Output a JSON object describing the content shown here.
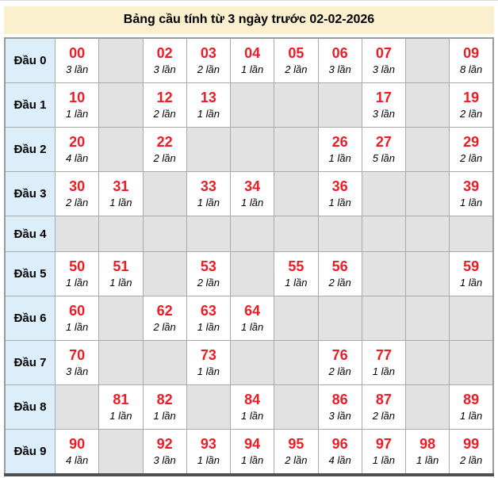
{
  "title": "Bảng cầu tính từ 3 ngày trước 02-02-2026",
  "colors": {
    "title_bg": "#FAF0CD",
    "row_header_bg": "#DCEEF9",
    "empty_cell_bg": "#E2E2E2",
    "number_red": "#ED1C24",
    "grid_line": "#AAAAAA",
    "table_bottom_border": "#4F4F4F"
  },
  "rows": [
    {
      "label": "Đầu 0",
      "cells": [
        {
          "num": "00",
          "count": "3 lần"
        },
        null,
        {
          "num": "02",
          "count": "3 lần"
        },
        {
          "num": "03",
          "count": "2 lần"
        },
        {
          "num": "04",
          "count": "1 lần"
        },
        {
          "num": "05",
          "count": "2 lần"
        },
        {
          "num": "06",
          "count": "3 lần"
        },
        {
          "num": "07",
          "count": "3 lần"
        },
        null,
        {
          "num": "09",
          "count": "8 lần"
        }
      ]
    },
    {
      "label": "Đầu 1",
      "cells": [
        {
          "num": "10",
          "count": "1 lần"
        },
        null,
        {
          "num": "12",
          "count": "2 lần"
        },
        {
          "num": "13",
          "count": "1 lần"
        },
        null,
        null,
        null,
        {
          "num": "17",
          "count": "3 lần"
        },
        null,
        {
          "num": "19",
          "count": "2 lần"
        }
      ]
    },
    {
      "label": "Đầu 2",
      "cells": [
        {
          "num": "20",
          "count": "4 lần"
        },
        null,
        {
          "num": "22",
          "count": "2 lần"
        },
        null,
        null,
        null,
        {
          "num": "26",
          "count": "1 lần"
        },
        {
          "num": "27",
          "count": "5 lần"
        },
        null,
        {
          "num": "29",
          "count": "2 lần"
        }
      ]
    },
    {
      "label": "Đầu 3",
      "cells": [
        {
          "num": "30",
          "count": "2 lần"
        },
        {
          "num": "31",
          "count": "1 lần"
        },
        null,
        {
          "num": "33",
          "count": "1 lần"
        },
        {
          "num": "34",
          "count": "1 lần"
        },
        null,
        {
          "num": "36",
          "count": "1 lần"
        },
        null,
        null,
        {
          "num": "39",
          "count": "1 lần"
        }
      ]
    },
    {
      "label": "Đầu 4",
      "cells": [
        null,
        null,
        null,
        null,
        null,
        null,
        null,
        null,
        null,
        null
      ]
    },
    {
      "label": "Đầu 5",
      "cells": [
        {
          "num": "50",
          "count": "1 lần"
        },
        {
          "num": "51",
          "count": "1 lần"
        },
        null,
        {
          "num": "53",
          "count": "2 lần"
        },
        null,
        {
          "num": "55",
          "count": "1 lần"
        },
        {
          "num": "56",
          "count": "2 lần"
        },
        null,
        null,
        {
          "num": "59",
          "count": "1 lần"
        }
      ]
    },
    {
      "label": "Đầu 6",
      "cells": [
        {
          "num": "60",
          "count": "1 lần"
        },
        null,
        {
          "num": "62",
          "count": "2 lần"
        },
        {
          "num": "63",
          "count": "1 lần"
        },
        {
          "num": "64",
          "count": "1 lần"
        },
        null,
        null,
        null,
        null,
        null
      ]
    },
    {
      "label": "Đầu 7",
      "cells": [
        {
          "num": "70",
          "count": "3 lần"
        },
        null,
        null,
        {
          "num": "73",
          "count": "1 lần"
        },
        null,
        null,
        {
          "num": "76",
          "count": "2 lần"
        },
        {
          "num": "77",
          "count": "1 lần"
        },
        null,
        null
      ]
    },
    {
      "label": "Đầu 8",
      "cells": [
        null,
        {
          "num": "81",
          "count": "1 lần"
        },
        {
          "num": "82",
          "count": "1 lần"
        },
        null,
        {
          "num": "84",
          "count": "1 lần"
        },
        null,
        {
          "num": "86",
          "count": "3 lần"
        },
        {
          "num": "87",
          "count": "2 lần"
        },
        null,
        {
          "num": "89",
          "count": "1 lần"
        }
      ]
    },
    {
      "label": "Đầu 9",
      "cells": [
        {
          "num": "90",
          "count": "4 lần"
        },
        null,
        {
          "num": "92",
          "count": "3 lần"
        },
        {
          "num": "93",
          "count": "1 lần"
        },
        {
          "num": "94",
          "count": "1 lần"
        },
        {
          "num": "95",
          "count": "2 lần"
        },
        {
          "num": "96",
          "count": "4 lần"
        },
        {
          "num": "97",
          "count": "1 lần"
        },
        {
          "num": "98",
          "count": "1 lần"
        },
        {
          "num": "99",
          "count": "2 lần"
        }
      ]
    }
  ]
}
